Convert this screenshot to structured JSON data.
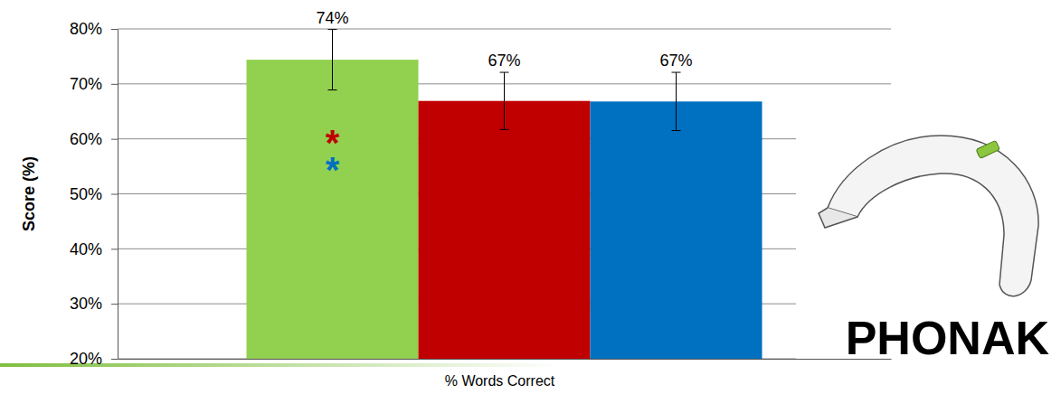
{
  "chart_data": {
    "type": "bar",
    "categories": [
      null,
      null,
      null
    ],
    "values": [
      74.4,
      66.9,
      66.8
    ],
    "value_labels": [
      "74%",
      "67%",
      "67%"
    ],
    "errors": [
      5.5,
      5.2,
      5.3
    ],
    "colors": [
      "#92d050",
      "#c00000",
      "#0070c0"
    ],
    "xlabel": "% Words Correct",
    "ylabel": "Score (%)",
    "ylim": [
      20,
      80
    ],
    "yticks": [
      {
        "value": 20,
        "label": "20%"
      },
      {
        "value": 30,
        "label": "30%"
      },
      {
        "value": 40,
        "label": "40%"
      },
      {
        "value": 50,
        "label": "50%"
      },
      {
        "value": 60,
        "label": "60%"
      },
      {
        "value": 70,
        "label": "70%"
      },
      {
        "value": 80,
        "label": "80%"
      }
    ],
    "grid": true,
    "data_labels": true,
    "annotations": [
      {
        "text": "*",
        "color": "#c00000"
      },
      {
        "text": "*",
        "color": "#0070c0"
      }
    ],
    "logo": "PHONAK"
  }
}
